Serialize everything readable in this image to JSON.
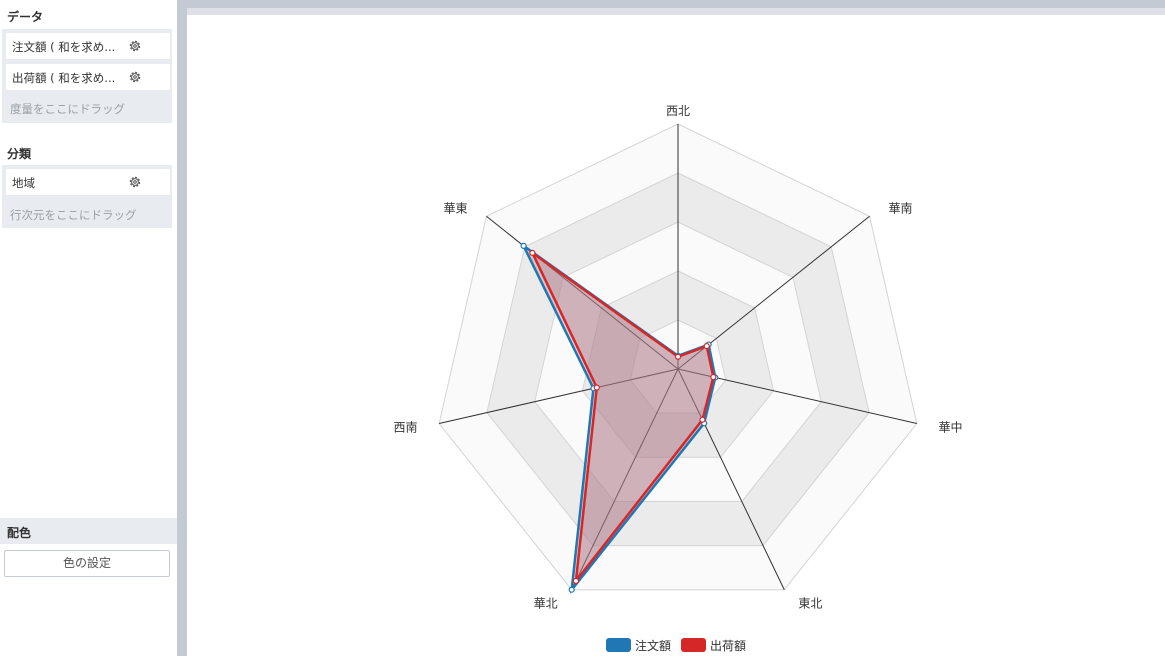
{
  "sidebar": {
    "data_title": "データ",
    "measures": [
      {
        "label": "注文額 ( 和を求め...",
        "icon": "gear-icon"
      },
      {
        "label": "出荷額 ( 和を求め...",
        "icon": "gear-icon"
      }
    ],
    "measures_hint": "度量をここにドラッグ",
    "category_title": "分類",
    "dimensions": [
      {
        "label": "地域",
        "icon": "gear-icon"
      }
    ],
    "dimensions_hint": "行次元をここにドラッグ",
    "color_title": "配色",
    "color_button": "色の設定"
  },
  "colors": {
    "series1": "#1f77b4",
    "series2": "#d62728",
    "fill": "#b07a8a"
  },
  "chart_data": {
    "type": "radar",
    "categories": [
      "西北",
      "華南",
      "華中",
      "東北",
      "華北",
      "西南",
      "華東"
    ],
    "rmax": 5,
    "series": [
      {
        "name": "注文額",
        "values": [
          0.27,
          0.8,
          0.78,
          1.23,
          5.0,
          1.77,
          4.03
        ]
      },
      {
        "name": "出荷額",
        "values": [
          0.25,
          0.75,
          0.74,
          1.15,
          4.8,
          1.7,
          3.8
        ]
      }
    ],
    "grid": true,
    "legend": "bottom"
  }
}
